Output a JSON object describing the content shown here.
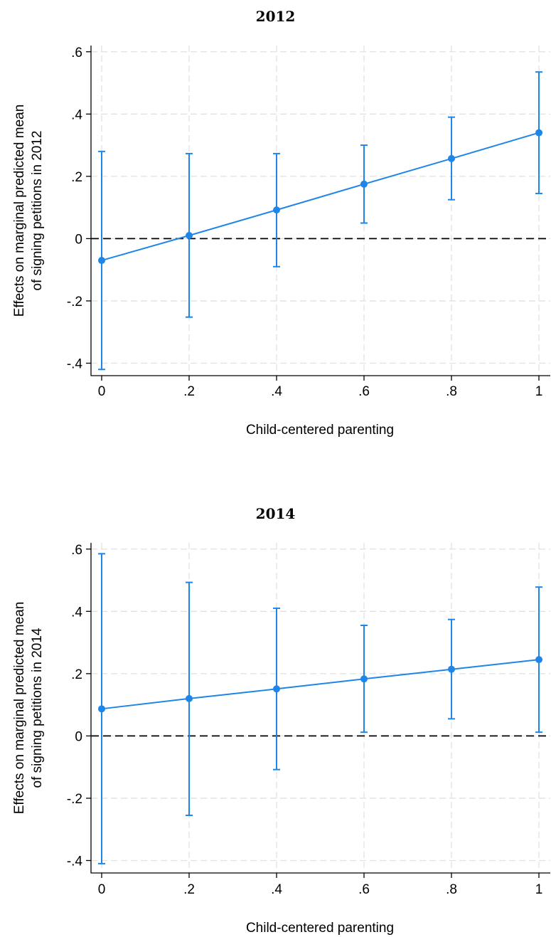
{
  "chart_data": [
    {
      "type": "line",
      "title": "2012",
      "xlabel": "Child-centered parenting",
      "ylabel_lines": [
        "Effects on marginal predicted mean",
        "of signing petitions in 2012"
      ],
      "x": [
        0,
        0.2,
        0.4,
        0.6,
        0.8,
        1
      ],
      "x_tick_labels": [
        "0",
        ".2",
        ".4",
        ".6",
        ".8",
        "1"
      ],
      "y_ticks": [
        -0.4,
        -0.2,
        0,
        0.2,
        0.4,
        0.6
      ],
      "y_tick_labels": [
        "-.4",
        "-.2",
        "0",
        ".2",
        ".4",
        ".6"
      ],
      "xlim": [
        0,
        1
      ],
      "ylim": [
        -0.44,
        0.62
      ],
      "grid": true,
      "reference_line_y": 0,
      "series": [
        {
          "values": [
            -0.07,
            0.01,
            0.092,
            0.175,
            0.257,
            0.34
          ],
          "ci_low": [
            -0.42,
            -0.252,
            -0.09,
            0.05,
            0.125,
            0.145
          ],
          "ci_high": [
            0.28,
            0.273,
            0.273,
            0.3,
            0.39,
            0.535
          ]
        }
      ],
      "colors": {
        "series": "#1f86e8",
        "grid": "#e1e1e1",
        "reference": "#000000"
      }
    },
    {
      "type": "line",
      "title": "2014",
      "xlabel": "Child-centered parenting",
      "ylabel_lines": [
        "Effects on marginal predicted mean",
        "of signing petitions in 2014"
      ],
      "x": [
        0,
        0.2,
        0.4,
        0.6,
        0.8,
        1
      ],
      "x_tick_labels": [
        "0",
        ".2",
        ".4",
        ".6",
        ".8",
        "1"
      ],
      "y_ticks": [
        -0.4,
        -0.2,
        0,
        0.2,
        0.4,
        0.6
      ],
      "y_tick_labels": [
        "-.4",
        "-.2",
        "0",
        ".2",
        ".4",
        ".6"
      ],
      "xlim": [
        0,
        1
      ],
      "ylim": [
        -0.44,
        0.62
      ],
      "grid": true,
      "reference_line_y": 0,
      "series": [
        {
          "values": [
            0.087,
            0.12,
            0.151,
            0.183,
            0.214,
            0.245
          ],
          "ci_low": [
            -0.41,
            -0.255,
            -0.108,
            0.012,
            0.055,
            0.012
          ],
          "ci_high": [
            0.585,
            0.493,
            0.41,
            0.355,
            0.374,
            0.478
          ]
        }
      ],
      "colors": {
        "series": "#1f86e8",
        "grid": "#e1e1e1",
        "reference": "#000000"
      }
    }
  ]
}
